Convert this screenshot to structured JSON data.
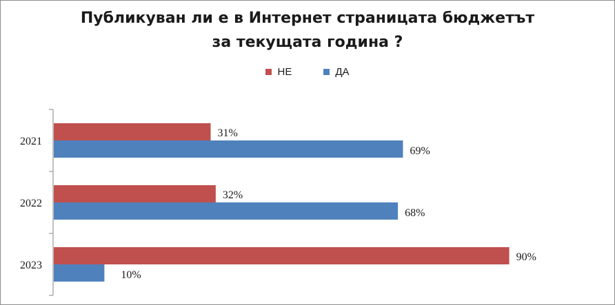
{
  "chart_data": {
    "type": "bar",
    "orientation": "horizontal",
    "title_lines": [
      "Публикуван ли е в Интернет страницата бюджетът",
      "за текущата година ?"
    ],
    "categories": [
      "2021",
      "2022",
      "2023"
    ],
    "series": [
      {
        "name": "НЕ",
        "color": "#c0504d",
        "values": [
          31,
          32,
          90
        ],
        "labels": [
          "31%",
          "32%",
          "90%"
        ]
      },
      {
        "name": "ДА",
        "color": "#4f81bd",
        "values": [
          69,
          68,
          10
        ],
        "labels": [
          "69%",
          "68%",
          "10%"
        ]
      }
    ],
    "xlim": [
      0,
      100
    ],
    "grid": false,
    "legend_position": "top"
  }
}
